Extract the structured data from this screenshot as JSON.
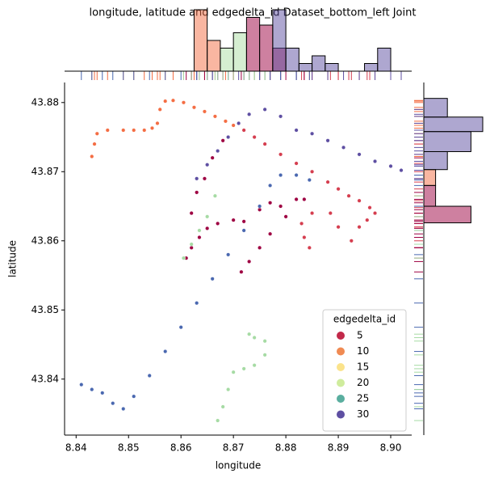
{
  "chart_data": [
    {
      "type": "scatter",
      "title": "longitude, latitude and edgedelta_id Dataset_bottom_left Joint",
      "x_label": "longitude",
      "y_label": "latitude",
      "xlim": [
        8.8378,
        8.904
      ],
      "ylim": [
        43.8319,
        43.8829
      ],
      "xticks": [
        8.84,
        8.85,
        8.86,
        8.87,
        8.88,
        8.89,
        {
          "value": 8.9,
          "label": "8.90"
        }
      ],
      "yticks": [
        43.84,
        43.85,
        43.86,
        43.87,
        43.88
      ],
      "series": [
        {
          "color": "#f46d43",
          "x": [
            8.843,
            8.8435,
            8.844,
            8.846,
            8.849,
            8.851,
            8.853,
            8.8545,
            8.8555,
            8.856,
            8.857,
            8.8585,
            8.8605,
            8.8625,
            8.8645,
            8.8665,
            8.8685,
            8.87
          ],
          "y": [
            43.8722,
            43.874,
            43.8755,
            43.876,
            43.876,
            43.876,
            43.876,
            43.8763,
            43.877,
            43.879,
            43.8802,
            43.8803,
            43.88,
            43.8793,
            43.8787,
            43.878,
            43.8773,
            43.8767
          ]
        },
        {
          "color": "#d53e4f",
          "x": [
            8.872,
            8.874,
            8.876,
            8.879,
            8.882,
            8.885,
            8.888,
            8.89,
            8.892,
            8.894,
            8.896,
            8.897,
            8.8955,
            8.894,
            8.8925,
            8.89,
            8.8885,
            8.885,
            8.883,
            8.8835,
            8.8845
          ],
          "y": [
            43.876,
            43.875,
            43.874,
            43.8725,
            43.8712,
            43.87,
            43.8685,
            43.8675,
            43.8665,
            43.8658,
            43.8648,
            43.864,
            43.863,
            43.862,
            43.86,
            43.862,
            43.864,
            43.864,
            43.8625,
            43.8605,
            43.859
          ]
        },
        {
          "color": "#9e0142",
          "x": [
            8.862,
            8.863,
            8.8645,
            8.866,
            8.868,
            8.861,
            8.862,
            8.8635,
            8.865,
            8.867,
            8.87,
            8.872,
            8.875,
            8.877,
            8.879,
            8.88,
            8.877,
            8.875,
            8.873,
            8.8715,
            8.882,
            8.8835
          ],
          "y": [
            43.864,
            43.867,
            43.869,
            43.872,
            43.8745,
            43.8575,
            43.859,
            43.8605,
            43.8618,
            43.8625,
            43.863,
            43.8628,
            43.8645,
            43.8655,
            43.865,
            43.8635,
            43.861,
            43.859,
            43.857,
            43.8555,
            43.866,
            43.866
          ]
        },
        {
          "color": "#5e4fa2",
          "x": [
            8.863,
            8.865,
            8.867,
            8.869,
            8.871,
            8.873,
            8.876,
            8.879,
            8.882,
            8.885,
            8.888,
            8.891,
            8.894,
            8.897,
            8.9,
            8.902
          ],
          "y": [
            43.869,
            43.871,
            43.873,
            43.875,
            43.877,
            43.8783,
            43.879,
            43.878,
            43.876,
            43.8755,
            43.8745,
            43.8735,
            43.8725,
            43.8715,
            43.8708,
            43.8702
          ]
        },
        {
          "color": "#4a68b0",
          "x": [
            8.841,
            8.843,
            8.845,
            8.847,
            8.849,
            8.851,
            8.854,
            8.857,
            8.86,
            8.863,
            8.866,
            8.869,
            8.872,
            8.875,
            8.877,
            8.879,
            8.882,
            8.8845
          ],
          "y": [
            43.8392,
            43.8385,
            43.838,
            43.8365,
            43.8357,
            43.8375,
            43.8405,
            43.844,
            43.8475,
            43.851,
            43.8545,
            43.858,
            43.8615,
            43.865,
            43.868,
            43.8695,
            43.8695,
            43.8688
          ]
        },
        {
          "color": "#a6dba4",
          "x": [
            8.8605,
            8.862,
            8.8635,
            8.865,
            8.8665,
            8.867,
            8.868,
            8.869,
            8.87,
            8.872,
            8.874,
            8.876,
            8.876,
            8.874,
            8.873
          ],
          "y": [
            43.8575,
            43.8595,
            43.8615,
            43.8635,
            43.8665,
            43.834,
            43.836,
            43.8385,
            43.841,
            43.8415,
            43.842,
            43.8435,
            43.8455,
            43.846,
            43.8465
          ]
        }
      ],
      "legend": {
        "title": "edgedelta_id",
        "position": "lower right",
        "entries": [
          {
            "value": 5,
            "color": "#c2294a"
          },
          {
            "value": 10,
            "color": "#f08a52"
          },
          {
            "value": 15,
            "color": "#fbe38b"
          },
          {
            "value": 20,
            "color": "#cfec9d"
          },
          {
            "value": 25,
            "color": "#5aae9f"
          },
          {
            "value": 30,
            "color": "#5e4fa2"
          }
        ]
      }
    },
    {
      "type": "histogram",
      "orientation": "vertical",
      "ylim": [
        0,
        8
      ],
      "series": [
        {
          "color": "#f46d43",
          "bins": [
            8.8625,
            8.865,
            8.8675
          ],
          "counts": [
            8,
            4
          ]
        },
        {
          "color": "#abdda4",
          "bins": [
            8.8675,
            8.87,
            8.8725
          ],
          "counts": [
            3,
            5
          ]
        },
        {
          "color": "#9e0142",
          "bins": [
            8.8725,
            8.875,
            8.8775,
            8.88
          ],
          "counts": [
            7,
            6,
            3
          ]
        },
        {
          "color": "#5e4fa2",
          "bins": [
            8.8775,
            8.88,
            8.8825,
            8.885,
            8.8875,
            8.89,
            8.8925,
            8.895,
            8.8975,
            8.9
          ],
          "counts": [
            8,
            3,
            1,
            2,
            1,
            0,
            0,
            1,
            3
          ]
        }
      ]
    },
    {
      "type": "histogram",
      "orientation": "horizontal",
      "xlim": [
        0,
        5
      ],
      "series": [
        {
          "color": "#5e4fa2",
          "bins": [
            43.8703,
            43.8729,
            43.8758,
            43.8779,
            43.8806
          ],
          "counts": [
            2,
            4,
            5,
            2
          ]
        },
        {
          "color": "#f46d43",
          "bins": [
            43.868,
            43.8703
          ],
          "counts": [
            1
          ]
        },
        {
          "color": "#9e0142",
          "bins": [
            43.8626,
            43.865,
            43.868
          ],
          "counts": [
            4,
            1
          ]
        }
      ]
    }
  ]
}
